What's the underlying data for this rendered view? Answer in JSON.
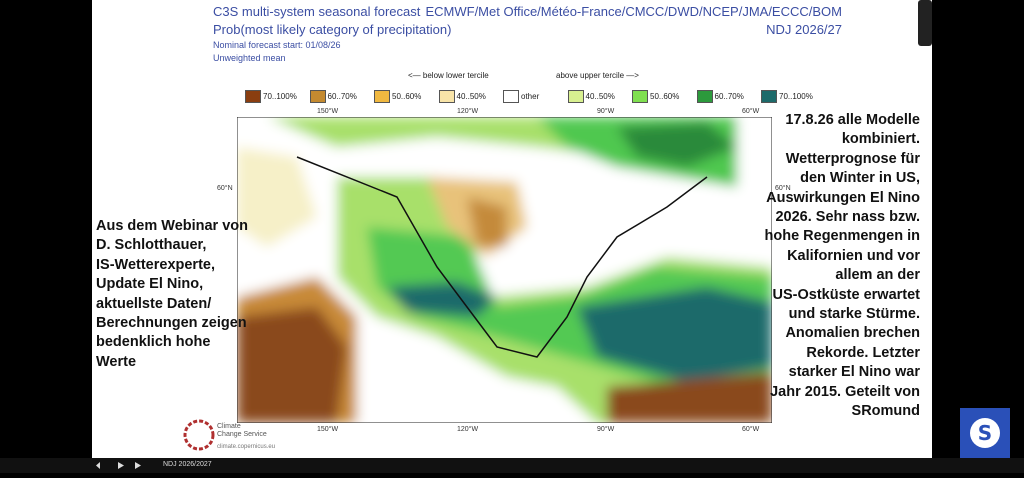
{
  "header": {
    "title": "C3S multi-system seasonal forecast",
    "centres": "ECMWF/Met Office/Météo-France/CMCC/DWD/NCEP/JMA/ECCC/BOM",
    "subtitle": "Prob(most likely category of precipitation)",
    "season": "NDJ 2026/27",
    "start": "Nominal forecast start: 01/08/26",
    "weighting": "Unweighted mean"
  },
  "legend": {
    "below": "<— below lower tercile",
    "above": "above upper tercile —>",
    "items": [
      "70..100%",
      "60..70%",
      "50..60%",
      "40..50%",
      "other",
      "40..50%",
      "50..60%",
      "60..70%",
      "70..100%"
    ]
  },
  "map": {
    "top_labels": [
      "150°W",
      "120°W",
      "90°W",
      "60°W"
    ],
    "bottom_labels": [
      "150°W",
      "120°W",
      "90°W",
      "60°W"
    ],
    "left_label": "60°N",
    "right_label": "60°N"
  },
  "logo": {
    "line1": "Climate",
    "line2": "Change Service",
    "url": "climate.copernicus.eu"
  },
  "overlay_left": [
    "Aus dem Webinar von",
    "D. Schlotthauer,",
    "IS-Wetterexperte,",
    "Update El Nino,",
    "aktuellste Daten/",
    "Berechnungen zeigen",
    "bedenklich hohe",
    "Werte"
  ],
  "overlay_right": [
    "17.8.26 alle Modelle",
    "kombiniert.",
    "Wetterprognose für",
    "den Winter in US,",
    "Auswirkungen El Nino",
    "2026. Sehr nass bzw.",
    "hohe Regenmengen in",
    "Kalifornien und vor",
    "allem an der",
    "US-Ostküste erwartet",
    "und starke Stürme.",
    "Anomalien brechen",
    "Rekorde. Letzter",
    "starker El Nino war",
    "Jahr 2015. Geteilt von",
    "SRomund"
  ],
  "player": {
    "chapter": "NDJ 2026/2027"
  }
}
